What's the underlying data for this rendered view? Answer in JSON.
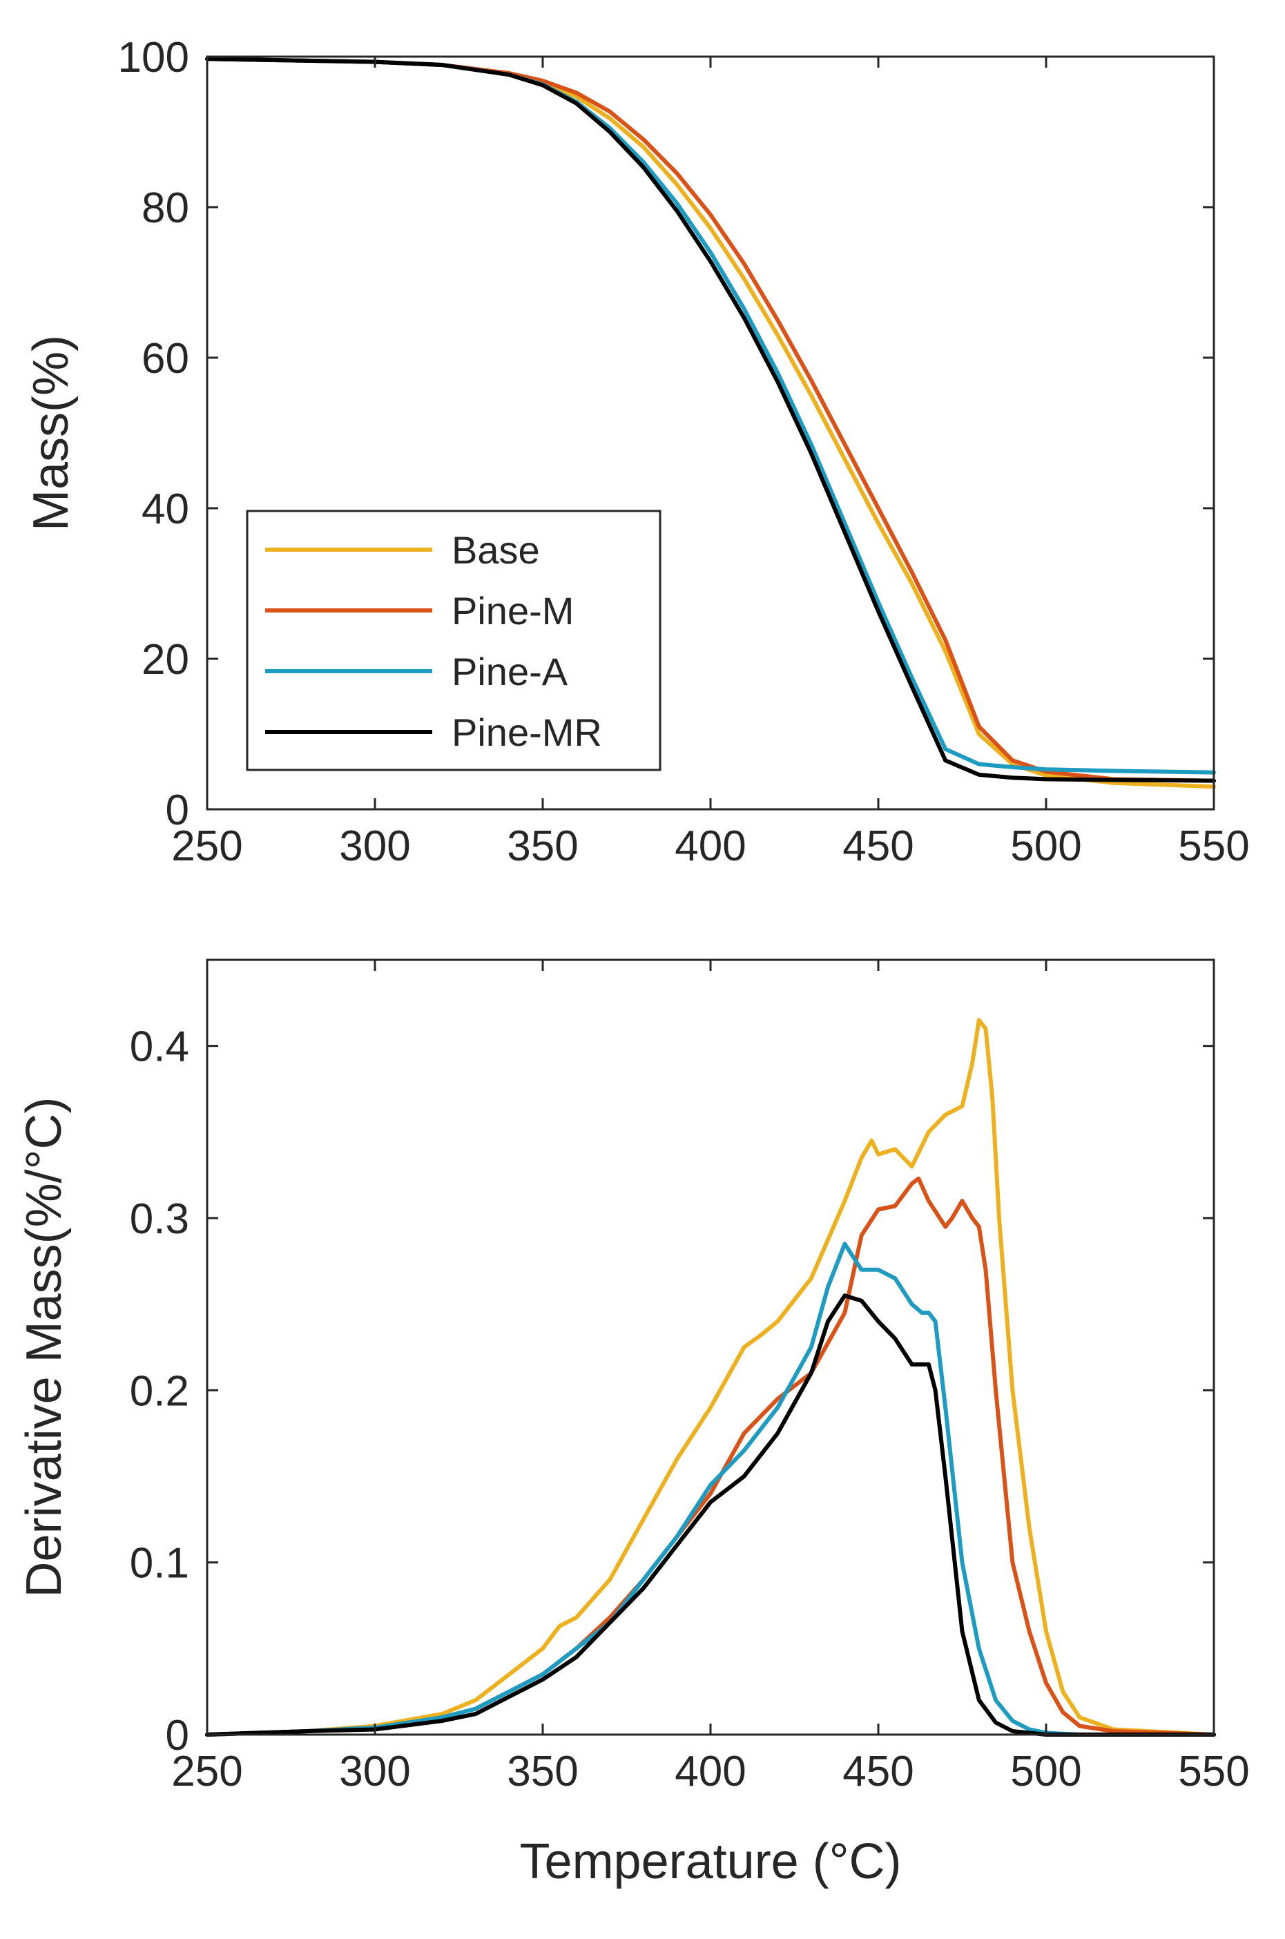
{
  "colors": {
    "Base": "#EDB120",
    "Pine-M": "#D95319",
    "Pine-A": "#1E9BC0",
    "Pine-MR": "#000000",
    "axis": "#262626"
  },
  "chart_data": [
    {
      "type": "line",
      "title": "",
      "xlabel": "",
      "ylabel": "Mass(%)",
      "xlim": [
        250,
        550
      ],
      "ylim": [
        0,
        100
      ],
      "xticks": [
        250,
        300,
        350,
        400,
        450,
        500,
        550
      ],
      "yticks": [
        0,
        20,
        40,
        60,
        80,
        100
      ],
      "legend": {
        "location": "inside-lower-left",
        "entries": [
          "Base",
          "Pine-M",
          "Pine-A",
          "Pine-MR"
        ]
      },
      "series": [
        {
          "name": "Base",
          "x": [
            250,
            300,
            320,
            340,
            350,
            360,
            370,
            380,
            390,
            400,
            410,
            420,
            430,
            440,
            450,
            460,
            470,
            480,
            490,
            500,
            520,
            550
          ],
          "y": [
            99.7,
            99.3,
            98.9,
            97.7,
            96.5,
            94.7,
            91.8,
            88.0,
            83.0,
            77.2,
            70.5,
            63.0,
            55.0,
            46.5,
            38.0,
            30.0,
            21.0,
            10.0,
            6.0,
            4.5,
            3.5,
            3.0
          ]
        },
        {
          "name": "Pine-M",
          "x": [
            250,
            300,
            320,
            340,
            350,
            360,
            370,
            380,
            390,
            400,
            410,
            420,
            430,
            440,
            450,
            460,
            470,
            480,
            490,
            500,
            520,
            550
          ],
          "y": [
            99.7,
            99.3,
            98.9,
            97.8,
            96.8,
            95.2,
            92.7,
            89.0,
            84.5,
            79.0,
            72.5,
            65.0,
            57.0,
            48.5,
            40.0,
            31.5,
            22.5,
            11.0,
            6.5,
            5.0,
            4.0,
            3.8
          ]
        },
        {
          "name": "Pine-A",
          "x": [
            250,
            300,
            320,
            340,
            350,
            360,
            370,
            380,
            390,
            400,
            410,
            420,
            430,
            440,
            450,
            460,
            470,
            480,
            490,
            500,
            520,
            550
          ],
          "y": [
            99.7,
            99.3,
            98.9,
            97.6,
            96.3,
            94.0,
            90.5,
            86.0,
            80.5,
            74.0,
            66.5,
            58.0,
            48.5,
            38.0,
            27.5,
            17.5,
            8.0,
            6.0,
            5.6,
            5.3,
            5.1,
            4.9
          ]
        },
        {
          "name": "Pine-MR",
          "x": [
            250,
            300,
            320,
            340,
            350,
            360,
            370,
            380,
            390,
            400,
            410,
            420,
            430,
            440,
            450,
            460,
            470,
            480,
            490,
            500,
            520,
            550
          ],
          "y": [
            99.7,
            99.3,
            98.9,
            97.6,
            96.2,
            93.8,
            90.0,
            85.3,
            79.5,
            72.8,
            65.3,
            56.8,
            47.3,
            36.8,
            26.3,
            16.3,
            6.5,
            4.6,
            4.2,
            4.0,
            3.9,
            3.8
          ]
        }
      ]
    },
    {
      "type": "line",
      "title": "",
      "xlabel": "Temperature (°C)",
      "ylabel": "Derivative Mass(%/°C)",
      "xlim": [
        250,
        550
      ],
      "ylim": [
        0,
        0.45
      ],
      "xticks": [
        250,
        300,
        350,
        400,
        450,
        500,
        550
      ],
      "yticks": [
        0,
        0.1,
        0.2,
        0.3,
        0.4
      ],
      "series": [
        {
          "name": "Base",
          "x": [
            250,
            280,
            300,
            320,
            330,
            340,
            350,
            355,
            360,
            370,
            380,
            390,
            400,
            410,
            415,
            420,
            430,
            440,
            445,
            448,
            450,
            455,
            460,
            465,
            470,
            475,
            478,
            480,
            482,
            484,
            486,
            490,
            495,
            500,
            505,
            510,
            520,
            550
          ],
          "y": [
            0.0,
            0.002,
            0.005,
            0.012,
            0.02,
            0.035,
            0.05,
            0.063,
            0.068,
            0.09,
            0.125,
            0.16,
            0.19,
            0.225,
            0.232,
            0.24,
            0.265,
            0.31,
            0.335,
            0.345,
            0.337,
            0.34,
            0.33,
            0.35,
            0.36,
            0.365,
            0.39,
            0.415,
            0.41,
            0.37,
            0.3,
            0.2,
            0.12,
            0.06,
            0.025,
            0.01,
            0.003,
            0.0
          ]
        },
        {
          "name": "Pine-M",
          "x": [
            250,
            280,
            300,
            320,
            330,
            340,
            350,
            360,
            370,
            380,
            390,
            400,
            410,
            420,
            430,
            440,
            445,
            450,
            455,
            460,
            462,
            465,
            470,
            472,
            475,
            478,
            480,
            482,
            485,
            488,
            490,
            495,
            500,
            505,
            510,
            520,
            550
          ],
          "y": [
            0.0,
            0.002,
            0.004,
            0.01,
            0.015,
            0.025,
            0.035,
            0.05,
            0.068,
            0.09,
            0.115,
            0.14,
            0.175,
            0.195,
            0.21,
            0.245,
            0.29,
            0.305,
            0.307,
            0.32,
            0.323,
            0.31,
            0.295,
            0.3,
            0.31,
            0.3,
            0.295,
            0.27,
            0.2,
            0.14,
            0.1,
            0.06,
            0.03,
            0.013,
            0.005,
            0.002,
            0.0
          ]
        },
        {
          "name": "Pine-A",
          "x": [
            250,
            280,
            300,
            320,
            330,
            340,
            350,
            360,
            370,
            380,
            390,
            400,
            410,
            420,
            430,
            435,
            440,
            445,
            450,
            455,
            460,
            463,
            465,
            467,
            470,
            475,
            480,
            485,
            490,
            495,
            500,
            510,
            550
          ],
          "y": [
            0.0,
            0.002,
            0.004,
            0.01,
            0.015,
            0.025,
            0.035,
            0.05,
            0.065,
            0.09,
            0.115,
            0.145,
            0.165,
            0.19,
            0.225,
            0.26,
            0.285,
            0.27,
            0.27,
            0.265,
            0.25,
            0.245,
            0.245,
            0.24,
            0.19,
            0.1,
            0.05,
            0.02,
            0.008,
            0.003,
            0.001,
            0.0,
            0.0
          ]
        },
        {
          "name": "Pine-MR",
          "x": [
            250,
            280,
            300,
            320,
            330,
            340,
            350,
            360,
            370,
            380,
            390,
            400,
            410,
            420,
            430,
            435,
            440,
            445,
            450,
            455,
            460,
            465,
            467,
            470,
            475,
            480,
            485,
            490,
            500,
            550
          ],
          "y": [
            0.0,
            0.002,
            0.003,
            0.008,
            0.012,
            0.022,
            0.032,
            0.045,
            0.065,
            0.085,
            0.11,
            0.135,
            0.15,
            0.175,
            0.21,
            0.24,
            0.255,
            0.252,
            0.24,
            0.23,
            0.215,
            0.215,
            0.2,
            0.15,
            0.06,
            0.02,
            0.007,
            0.002,
            0.0,
            0.0
          ]
        }
      ]
    }
  ]
}
